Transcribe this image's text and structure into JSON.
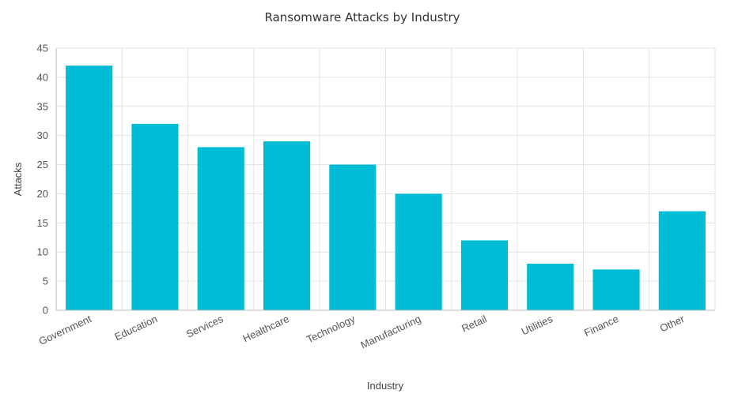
{
  "chart_data": {
    "type": "bar",
    "title": "Ransomware Attacks by Industry",
    "xlabel": "Industry",
    "ylabel": "Attacks",
    "categories": [
      "Government",
      "Education",
      "Services",
      "Healthcare",
      "Technology",
      "Manufacturing",
      "Retail",
      "Utilities",
      "Finance",
      "Other"
    ],
    "values": [
      42,
      32,
      28,
      29,
      25,
      20,
      12,
      8,
      7,
      17
    ],
    "ylim": [
      0,
      45
    ],
    "yticks": [
      0,
      5,
      10,
      15,
      20,
      25,
      30,
      35,
      40,
      45
    ],
    "grid": true,
    "bar_color": "#00bcd4",
    "legend": "none"
  }
}
